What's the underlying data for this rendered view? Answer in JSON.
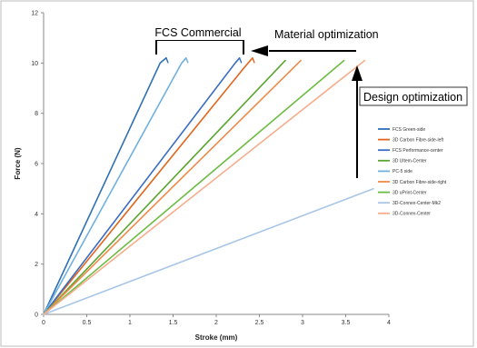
{
  "chart_data": {
    "type": "line",
    "xlabel": "Stroke (mm)",
    "ylabel": "Force (N)",
    "xlim": [
      0,
      4
    ],
    "ylim": [
      0,
      12
    ],
    "x_ticks": [
      "0",
      "0.5",
      "1",
      "1.5",
      "2",
      "2.5",
      "3",
      "3.5",
      "4"
    ],
    "y_ticks": [
      "0",
      "2",
      "4",
      "6",
      "8",
      "10",
      "12"
    ],
    "grid": false,
    "legend_position": "right",
    "series": [
      {
        "name": "FCS Green-side",
        "color": "#2e6fb5",
        "points": [
          [
            0,
            0
          ],
          [
            1.35,
            10.0
          ],
          [
            1.42,
            10.2
          ]
        ],
        "hook": true
      },
      {
        "name": "3D Carbon Fibre-side-left",
        "color": "#e0661e",
        "points": [
          [
            0,
            0
          ],
          [
            2.32,
            9.8
          ],
          [
            2.42,
            10.2
          ]
        ],
        "hook": true
      },
      {
        "name": "FCS Performance-center",
        "color": "#3a6cc4",
        "points": [
          [
            0,
            0
          ],
          [
            2.22,
            10.0
          ],
          [
            2.27,
            10.2
          ]
        ],
        "hook": true
      },
      {
        "name": "3D Ultem-Center",
        "color": "#5aa530",
        "points": [
          [
            0,
            0
          ],
          [
            2.8,
            10.1
          ]
        ],
        "hook": false
      },
      {
        "name": "PC-5 side",
        "color": "#6fb0df",
        "points": [
          [
            0,
            0
          ],
          [
            1.6,
            10.0
          ],
          [
            1.65,
            10.2
          ]
        ],
        "hook": true
      },
      {
        "name": "3D Carbon Fibre-side-right",
        "color": "#ef8a4a",
        "points": [
          [
            0,
            0
          ],
          [
            2.98,
            10.1
          ]
        ],
        "hook": false
      },
      {
        "name": "3D uPrint-Center",
        "color": "#6cbb43",
        "points": [
          [
            0,
            0
          ],
          [
            3.48,
            10.1
          ]
        ],
        "hook": false
      },
      {
        "name": "3D-Connex-Center-Mk2",
        "color": "#a9c6e8",
        "points": [
          [
            0,
            0
          ],
          [
            3.82,
            5.0
          ]
        ],
        "hook": false
      },
      {
        "name": "3D-Connex-Center",
        "color": "#f5ad8c",
        "points": [
          [
            0,
            0
          ],
          [
            3.72,
            10.1
          ]
        ],
        "hook": false
      }
    ]
  },
  "annotations": {
    "fcs_commercial": "FCS Commercial",
    "material_optimization": "Material optimization",
    "design_optimization": "Design optimization"
  }
}
